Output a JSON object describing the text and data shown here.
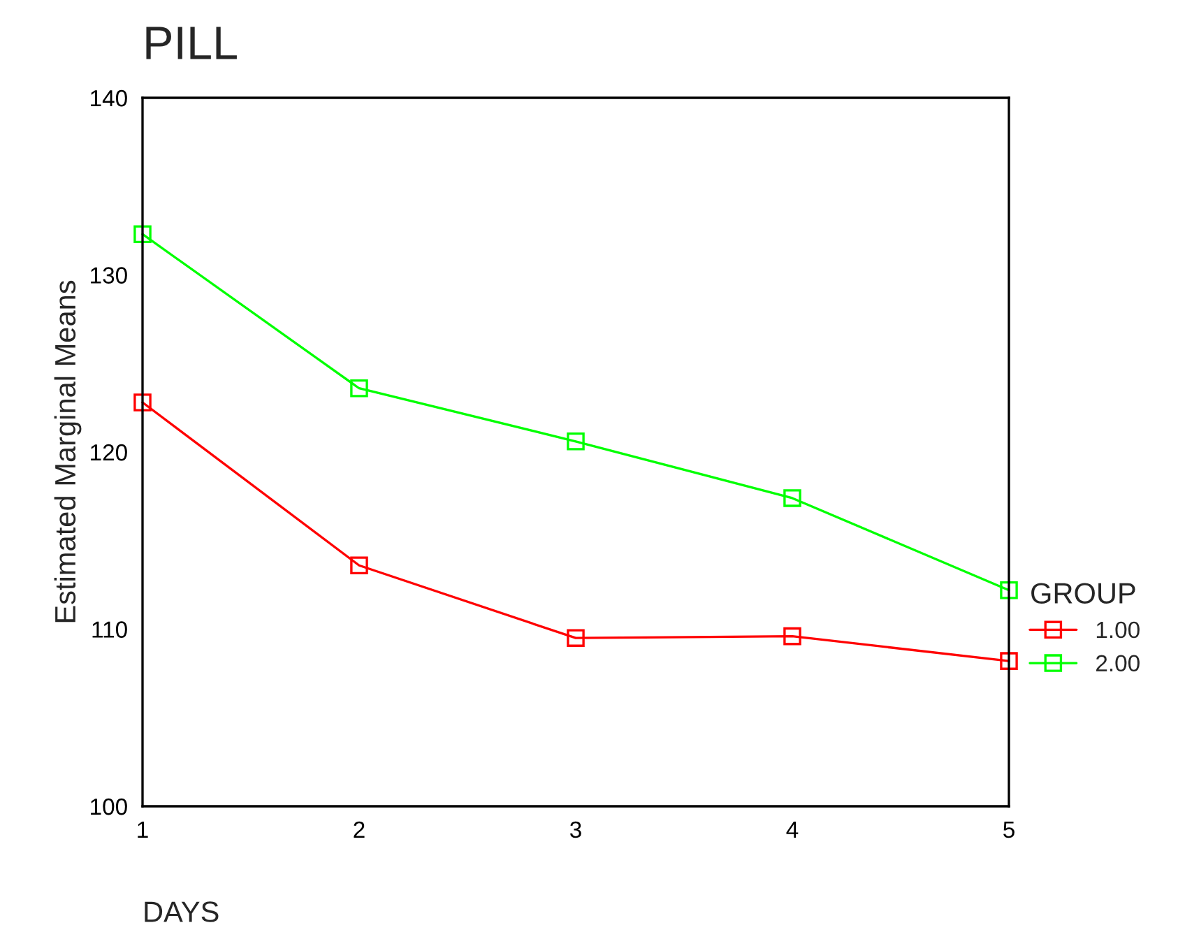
{
  "chart_data": {
    "type": "line",
    "title": "PILL",
    "xlabel": "DAYS",
    "ylabel": "Estimated Marginal Means",
    "legend_title": "GROUP",
    "x": [
      1,
      2,
      3,
      4,
      5
    ],
    "series": [
      {
        "name": "1.00",
        "color": "#ff0000",
        "values": [
          122.8,
          113.6,
          109.5,
          109.6,
          108.2
        ]
      },
      {
        "name": "2.00",
        "color": "#00ff00",
        "values": [
          132.3,
          123.6,
          120.6,
          117.4,
          112.2
        ]
      }
    ],
    "xlim": [
      1,
      5
    ],
    "xticks": [
      1,
      2,
      3,
      4,
      5
    ],
    "ylim": [
      100,
      140
    ],
    "yticks": [
      100,
      110,
      120,
      130,
      140
    ],
    "grid": false,
    "legend": "right",
    "marker": "square",
    "line_style": "solid"
  }
}
